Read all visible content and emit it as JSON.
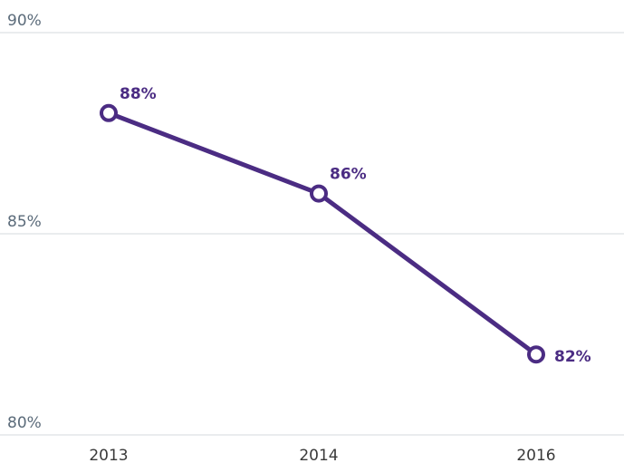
{
  "chart_data": {
    "type": "line",
    "categories": [
      "2013",
      "2014",
      "2016"
    ],
    "values": [
      88,
      86,
      82
    ],
    "value_labels": [
      "88%",
      "86%",
      "82%"
    ],
    "color": "#4b2c83",
    "ylim": [
      80,
      90
    ],
    "yticks": [
      {
        "value": 80,
        "label": "80%"
      },
      {
        "value": 85,
        "label": "85%"
      },
      {
        "value": 90,
        "label": "90%"
      }
    ],
    "grid": true
  }
}
